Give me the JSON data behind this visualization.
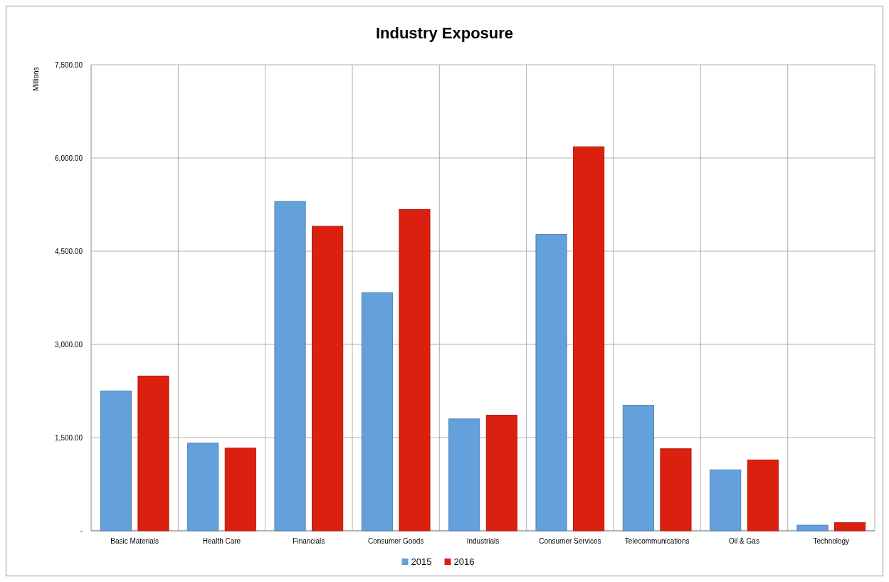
{
  "chart_data": {
    "type": "bar",
    "title": "Industry Exposure",
    "ylabel": "Millions",
    "categories": [
      "Basic Materials",
      "Health Care",
      "Financials",
      "Consumer Goods",
      "Industrials",
      "Consumer Services",
      "Telecommunications",
      "Oil & Gas",
      "Technology"
    ],
    "series": [
      {
        "name": "2015",
        "color": "#63a0dc",
        "values": [
          2250,
          1410,
          5300,
          3830,
          1800,
          4770,
          2020,
          980,
          90
        ]
      },
      {
        "name": "2016",
        "color": "#dc2010",
        "values": [
          2490,
          1330,
          4900,
          5170,
          1860,
          6180,
          1320,
          1140,
          130
        ]
      }
    ],
    "ylim": [
      0,
      7500
    ],
    "yticks": [
      {
        "value": 0,
        "label": "-"
      },
      {
        "value": 1500,
        "label": "1,500.00"
      },
      {
        "value": 3000,
        "label": "3,000.00"
      },
      {
        "value": 4500,
        "label": "4,500.00"
      },
      {
        "value": 6000,
        "label": "6,000.00"
      },
      {
        "value": 7500,
        "label": "7,500.00"
      }
    ],
    "grid": true,
    "legend": "bottom"
  }
}
